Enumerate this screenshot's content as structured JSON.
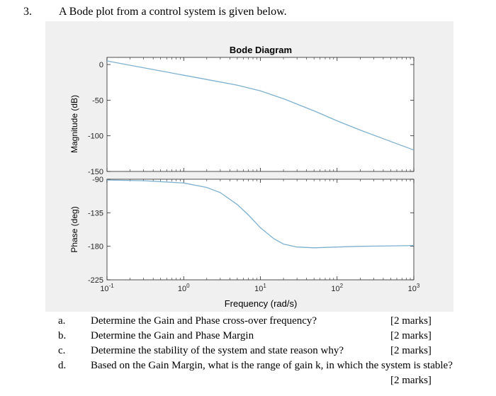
{
  "question": {
    "number": "3.",
    "text": "A Bode plot from a control system is given below."
  },
  "chart_data": {
    "type": "line",
    "title": "Bode Diagram",
    "xlabel": "Frequency (rad/s)",
    "x_scale": "log",
    "xlim": [
      0.1,
      1000
    ],
    "x_ticks": [
      {
        "value": 0.1,
        "base": "10",
        "exp": "-1"
      },
      {
        "value": 1,
        "base": "10",
        "exp": "0"
      },
      {
        "value": 10,
        "base": "10",
        "exp": "1"
      },
      {
        "value": 100,
        "base": "10",
        "exp": "2"
      },
      {
        "value": 1000,
        "base": "10",
        "exp": "3"
      }
    ],
    "grid": "minor ticks only",
    "line_color": "#7eb1cf",
    "magnitude": {
      "ylabel": "Magnitude (dB)",
      "ylim": [
        -150,
        10
      ],
      "y_ticks": [
        "0",
        "-50",
        "-100",
        "-150"
      ],
      "x": [
        0.1,
        0.2,
        0.5,
        1,
        2,
        5,
        10,
        20,
        50,
        100,
        200,
        500,
        1000
      ],
      "y": [
        5,
        -1,
        -9,
        -15,
        -21,
        -29,
        -37,
        -48,
        -65,
        -79,
        -92,
        -108,
        -120
      ]
    },
    "phase": {
      "ylabel": "Phase (deg)",
      "ylim": [
        -225,
        -90
      ],
      "y_ticks": [
        "-90",
        "-135",
        "-180",
        "-225"
      ],
      "x": [
        0.1,
        0.3,
        1,
        2,
        3,
        5,
        7,
        10,
        15,
        20,
        30,
        50,
        100,
        200,
        500,
        1000
      ],
      "y": [
        -91,
        -92,
        -95,
        -101,
        -108,
        -124,
        -138,
        -155,
        -170,
        -177,
        -181,
        -182,
        -181,
        -180,
        -179.5,
        -179
      ]
    }
  },
  "subquestions": [
    {
      "letter": "a.",
      "text": "Determine the Gain and Phase cross-over frequency?",
      "marks": "[2 marks]"
    },
    {
      "letter": "b.",
      "text": "Determine the Gain and Phase Margin",
      "marks": "[2 marks]"
    },
    {
      "letter": "c.",
      "text": "Determine the stability of the system and state reason why?",
      "marks": "[2 marks]"
    },
    {
      "letter": "d.",
      "text": "Based on the Gain Margin, what is the range of gain k, in which the system is stable?",
      "marks": "[2 marks]"
    }
  ]
}
